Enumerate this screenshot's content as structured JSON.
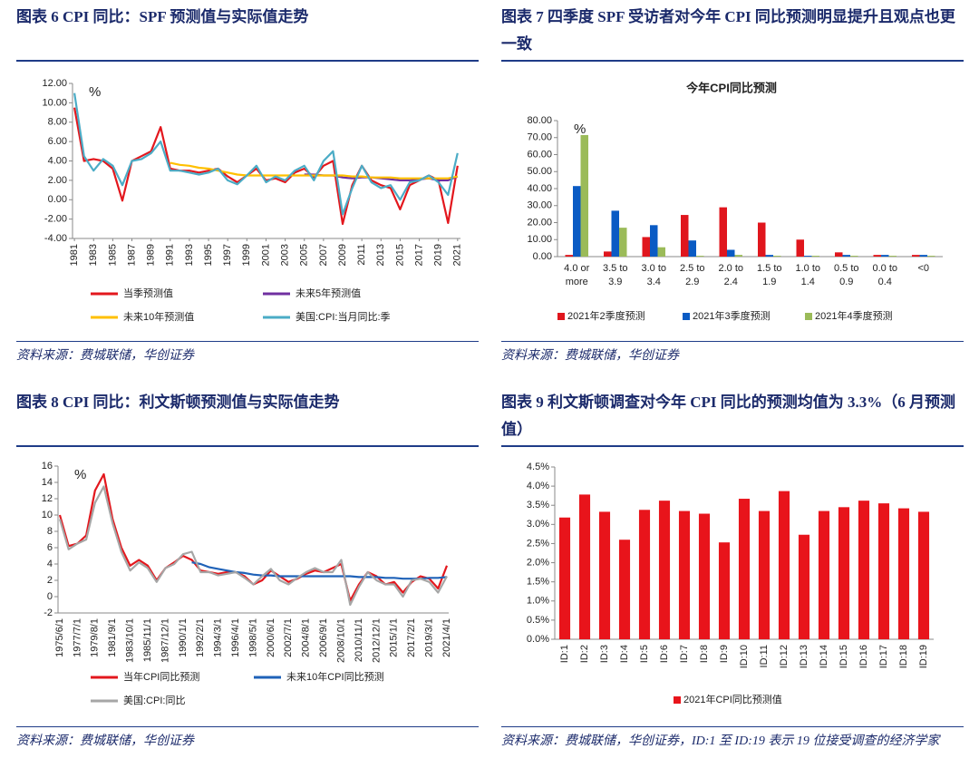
{
  "figures": [
    {
      "caption": "图表 6   CPI 同比：SPF 预测值与实际值走势",
      "source": "资料来源：费城联储，华创证券"
    },
    {
      "caption": "图表 7   四季度 SPF 受访者对今年 CPI 同比预测明显提升且观点也更一致",
      "source": "资料来源：费城联储，华创证券"
    },
    {
      "caption": "图表 8   CPI 同比：利文斯顿预测值与实际值走势",
      "source": "资料来源：费城联储，华创证券"
    },
    {
      "caption": "图表 9   利文斯顿调查对今年 CPI 同比的预测均值为 3.3%（6 月预测值）",
      "source": "资料来源：费城联储，华创证券，ID:1 至 ID:19 表示 19 位接受调查的经济学家"
    }
  ],
  "chart_data": [
    {
      "type": "line",
      "unit": "%",
      "grid": false,
      "x": [
        1981,
        1982,
        1983,
        1984,
        1985,
        1986,
        1987,
        1988,
        1989,
        1990,
        1991,
        1992,
        1993,
        1994,
        1995,
        1996,
        1997,
        1998,
        1999,
        2000,
        2001,
        2002,
        2003,
        2004,
        2005,
        2006,
        2007,
        2008,
        2009,
        2010,
        2011,
        2012,
        2013,
        2014,
        2015,
        2016,
        2017,
        2018,
        2019,
        2020,
        2021
      ],
      "xlim": [
        1980.8,
        2021.3
      ],
      "xticks": [
        1981,
        1983,
        1985,
        1987,
        1989,
        1991,
        1993,
        1995,
        1997,
        1999,
        2001,
        2003,
        2005,
        2007,
        2009,
        2011,
        2013,
        2015,
        2017,
        2019,
        2021
      ],
      "ylim": [
        -4,
        12
      ],
      "yticks": [
        {
          "value": -4,
          "label": "-4.00"
        },
        {
          "value": -2,
          "label": "-2.00"
        },
        {
          "value": 0,
          "label": "0.00"
        },
        {
          "value": 2,
          "label": "2.00"
        },
        {
          "value": 4,
          "label": "4.00"
        },
        {
          "value": 6,
          "label": "6.00"
        },
        {
          "value": 8,
          "label": "8.00"
        },
        {
          "value": 10,
          "label": "10.00"
        },
        {
          "value": 12,
          "label": "12.00"
        }
      ],
      "series": [
        {
          "name": "当季预测值",
          "color": "#e3171d",
          "values": [
            9.5,
            4.0,
            4.2,
            4.0,
            3.2,
            -0.1,
            4.0,
            4.5,
            5.0,
            7.5,
            3.2,
            3.0,
            3.0,
            2.8,
            3.0,
            3.2,
            2.4,
            1.8,
            2.5,
            3.2,
            2.0,
            2.2,
            1.8,
            2.8,
            3.2,
            2.3,
            3.5,
            4.0,
            -2.5,
            1.5,
            3.5,
            2.0,
            1.5,
            1.2,
            -1.0,
            1.5,
            2.0,
            2.5,
            2.0,
            -2.4,
            3.5
          ]
        },
        {
          "name": "未来5年预测值",
          "color": "#7030a0",
          "values": [
            null,
            null,
            null,
            null,
            null,
            null,
            null,
            null,
            null,
            null,
            null,
            null,
            null,
            null,
            null,
            null,
            null,
            null,
            null,
            null,
            null,
            null,
            null,
            null,
            2.6,
            2.6,
            2.5,
            2.5,
            2.3,
            2.2,
            2.3,
            2.3,
            2.2,
            2.1,
            2.0,
            2.0,
            2.1,
            2.2,
            2.0,
            2.0,
            2.4
          ]
        },
        {
          "name": "未来10年预测值",
          "color": "#ffc000",
          "values": [
            null,
            null,
            null,
            null,
            null,
            null,
            null,
            null,
            null,
            null,
            3.8,
            3.6,
            3.5,
            3.3,
            3.2,
            3.0,
            2.8,
            2.6,
            2.5,
            2.5,
            2.5,
            2.5,
            2.5,
            2.5,
            2.5,
            2.5,
            2.5,
            2.5,
            2.5,
            2.4,
            2.4,
            2.3,
            2.3,
            2.3,
            2.2,
            2.2,
            2.2,
            2.2,
            2.2,
            2.2,
            2.4
          ]
        },
        {
          "name": "美国:CPI:当月同比:季",
          "color": "#4bacc6",
          "values": [
            11.0,
            4.5,
            3.0,
            4.2,
            3.5,
            1.5,
            4.0,
            4.2,
            4.8,
            6.0,
            3.0,
            3.0,
            2.8,
            2.6,
            2.8,
            3.2,
            2.0,
            1.6,
            2.5,
            3.5,
            1.8,
            2.4,
            2.0,
            3.0,
            3.5,
            2.0,
            4.0,
            5.0,
            -1.5,
            1.2,
            3.5,
            1.8,
            1.2,
            1.5,
            0.0,
            1.8,
            2.0,
            2.5,
            1.8,
            0.5,
            4.8
          ]
        }
      ]
    },
    {
      "type": "bar",
      "title": "今年CPI同比预测",
      "unit": "%",
      "grid": false,
      "categories": [
        "4.0 or more",
        "3.5 to 3.9",
        "3.0 to 3.4",
        "2.5 to 2.9",
        "2.0 to 2.4",
        "1.5 to 1.9",
        "1.0 to 1.4",
        "0.5 to 0.9",
        "0.0 to 0.4",
        "<0"
      ],
      "ylim": [
        0,
        80
      ],
      "yticks": [
        {
          "value": 0,
          "label": "0.00"
        },
        {
          "value": 10,
          "label": "10.00"
        },
        {
          "value": 20,
          "label": "20.00"
        },
        {
          "value": 30,
          "label": "30.00"
        },
        {
          "value": 40,
          "label": "40.00"
        },
        {
          "value": 50,
          "label": "50.00"
        },
        {
          "value": 60,
          "label": "60.00"
        },
        {
          "value": 70,
          "label": "70.00"
        },
        {
          "value": 80,
          "label": "80.00"
        }
      ],
      "series": [
        {
          "name": "2021年2季度预测",
          "color": "#e0161d",
          "values": [
            1,
            3,
            11.5,
            24.5,
            29,
            20,
            10,
            2.5,
            1,
            1
          ]
        },
        {
          "name": "2021年3季度预测",
          "color": "#0a5bc4",
          "values": [
            41.5,
            27,
            18.5,
            9.5,
            4,
            1,
            0.5,
            1,
            1,
            1
          ]
        },
        {
          "name": "2021年4季度预测",
          "color": "#9bbb59",
          "values": [
            71.5,
            17,
            5.5,
            0.5,
            1,
            0.5,
            0.5,
            0.5,
            0.5,
            0.5
          ]
        }
      ]
    },
    {
      "type": "line",
      "unit": "%",
      "grid": false,
      "categories": [
        "1975/6/1",
        null,
        "1977/7/1",
        null,
        "1979/8/1",
        null,
        "1981/9/1",
        null,
        "1983/10/1",
        null,
        "1985/11/1",
        null,
        "1987/12/1",
        null,
        "1990/1/1",
        null,
        "1992/2/1",
        null,
        "1994/3/1",
        null,
        "1996/4/1",
        null,
        "1998/5/1",
        null,
        "2000/6/1",
        null,
        "2002/7/1",
        null,
        "2004/8/1",
        null,
        "2006/9/1",
        null,
        "2008/10/1",
        null,
        "2010/11/1",
        null,
        "2012/12/1",
        null,
        "2015/1/1",
        null,
        "2017/2/1",
        null,
        "2019/3/1",
        null,
        "2021/4/1"
      ],
      "ylim": [
        -2,
        16
      ],
      "yticks": [
        -2,
        0,
        2,
        4,
        6,
        8,
        10,
        12,
        14,
        16
      ],
      "series": [
        {
          "name": "当年CPI同比预测",
          "color": "#e3171d",
          "values": [
            10,
            6.2,
            6.5,
            7.5,
            13,
            15,
            9.5,
            6,
            3.8,
            4.5,
            3.8,
            2.0,
            3.5,
            4.2,
            5.0,
            4.5,
            3.2,
            3.0,
            2.8,
            3.0,
            3.0,
            2.5,
            1.5,
            2.0,
            3.2,
            2.5,
            1.8,
            2.2,
            2.8,
            3.2,
            3.0,
            3.5,
            4.0,
            -0.5,
            1.5,
            3.0,
            2.5,
            1.5,
            1.8,
            0.5,
            1.8,
            2.5,
            2.2,
            1.0,
            3.8
          ]
        },
        {
          "name": "未来10年CPI同比预测",
          "color": "#1f62b8",
          "values": [
            null,
            null,
            null,
            null,
            null,
            null,
            null,
            null,
            null,
            null,
            null,
            null,
            null,
            null,
            null,
            4.2,
            4.0,
            3.6,
            3.4,
            3.2,
            3.0,
            2.9,
            2.7,
            2.6,
            2.6,
            2.5,
            2.5,
            2.5,
            2.5,
            2.5,
            2.5,
            2.5,
            2.5,
            2.5,
            2.4,
            2.4,
            2.4,
            2.3,
            2.3,
            2.2,
            2.2,
            2.2,
            2.3,
            2.3,
            2.4
          ]
        },
        {
          "name": "美国:CPI:同比",
          "color": "#a6a6a6",
          "values": [
            9.5,
            5.8,
            6.5,
            7.0,
            11.5,
            13.5,
            9,
            5.5,
            3.2,
            4.2,
            3.5,
            1.8,
            3.5,
            4.0,
            5.2,
            5.5,
            3.0,
            3.0,
            2.6,
            2.8,
            3.0,
            2.3,
            1.5,
            2.5,
            3.4,
            2.0,
            1.5,
            2.3,
            3.0,
            3.5,
            3.0,
            3.0,
            4.5,
            -1.0,
            1.2,
            3.0,
            2.0,
            1.5,
            1.5,
            0.0,
            2.0,
            2.2,
            1.8,
            0.5,
            2.5
          ]
        }
      ]
    },
    {
      "type": "bar",
      "grid": false,
      "categories": [
        "ID:1",
        "ID:2",
        "ID:3",
        "ID:4",
        "ID:5",
        "ID:6",
        "ID:7",
        "ID:8",
        "ID:9",
        "ID:10",
        "ID:11",
        "ID:12",
        "ID:13",
        "ID:14",
        "ID:15",
        "ID:16",
        "ID:17",
        "ID:18",
        "ID:19"
      ],
      "ylim": [
        0,
        4.5
      ],
      "yticks": [
        {
          "value": 0,
          "label": "0.0%"
        },
        {
          "value": 0.5,
          "label": "0.5%"
        },
        {
          "value": 1,
          "label": "1.0%"
        },
        {
          "value": 1.5,
          "label": "1.5%"
        },
        {
          "value": 2,
          "label": "2.0%"
        },
        {
          "value": 2.5,
          "label": "2.5%"
        },
        {
          "value": 3,
          "label": "3.0%"
        },
        {
          "value": 3.5,
          "label": "3.5%"
        },
        {
          "value": 4,
          "label": "4.0%"
        },
        {
          "value": 4.5,
          "label": "4.5%"
        }
      ],
      "series": [
        {
          "name": "2021年CPI同比预测值",
          "color": "#e8141b",
          "values": [
            3.18,
            3.78,
            3.33,
            2.6,
            3.38,
            3.62,
            3.35,
            3.28,
            2.53,
            3.67,
            3.35,
            3.87,
            2.73,
            3.35,
            3.45,
            3.62,
            3.55,
            3.42,
            3.33
          ]
        }
      ]
    }
  ]
}
